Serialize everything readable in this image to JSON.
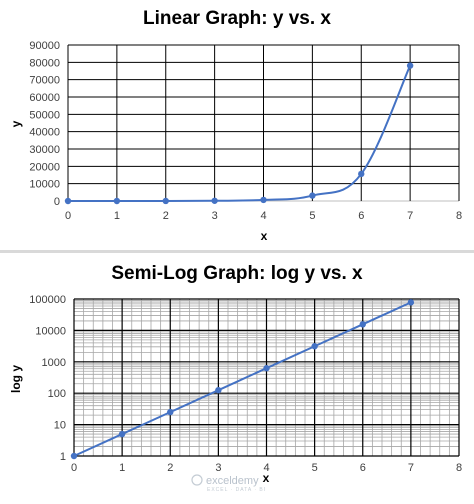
{
  "chart_data": [
    {
      "type": "line",
      "title": "Linear Graph: y vs. x",
      "xlabel": "x",
      "ylabel": "y",
      "xlim": [
        0,
        8
      ],
      "ylim": [
        0,
        90000
      ],
      "xticks": [
        "0",
        "1",
        "2",
        "3",
        "4",
        "5",
        "6",
        "7",
        "8"
      ],
      "yticks": [
        "0",
        "10000",
        "20000",
        "30000",
        "40000",
        "50000",
        "60000",
        "70000",
        "80000",
        "90000"
      ],
      "grid": true,
      "smooth": true,
      "series": [
        {
          "x": [
            0,
            1,
            2,
            3,
            4,
            5,
            6,
            7
          ],
          "y": [
            1,
            5,
            25,
            125,
            625,
            3125,
            15625,
            78125
          ]
        }
      ],
      "line_color": "#4472c4"
    },
    {
      "type": "line",
      "title": "Semi-Log Graph: log y vs. x",
      "xlabel": "x",
      "ylabel": "log y",
      "xlim": [
        0,
        8
      ],
      "ylim": [
        1,
        100000
      ],
      "yscale": "log",
      "xticks": [
        "0",
        "1",
        "2",
        "3",
        "4",
        "5",
        "6",
        "7",
        "8"
      ],
      "yticks": [
        "1",
        "10",
        "100",
        "1000",
        "10000",
        "100000"
      ],
      "grid": true,
      "minor_grid": true,
      "series": [
        {
          "x": [
            0,
            1,
            2,
            3,
            4,
            5,
            6,
            7
          ],
          "y": [
            1,
            5,
            25,
            125,
            625,
            3125,
            15625,
            78125
          ]
        }
      ],
      "line_color": "#4472c4"
    }
  ],
  "watermark": {
    "name": "exceldemy",
    "tagline": "EXCEL · DATA · BI"
  }
}
